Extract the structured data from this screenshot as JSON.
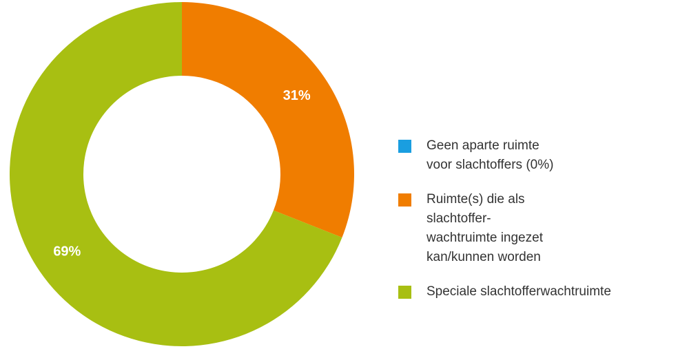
{
  "chart_data": {
    "type": "pie",
    "categories": [
      "Geen aparte ruimte voor slachtoffers (0%)",
      "Ruimte(s) die als slachtoffer-wachtruimte ingezet kan/kunnen worden",
      "Speciale slachtofferwachtruimte"
    ],
    "values": [
      0,
      31,
      69
    ],
    "value_labels": [
      null,
      "31%",
      "69%"
    ],
    "colors": [
      "#1a9ee0",
      "#f07d00",
      "#a8bf12"
    ],
    "donut": true,
    "legend": "right"
  }
}
